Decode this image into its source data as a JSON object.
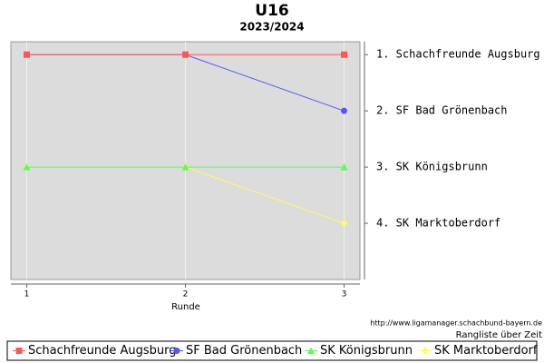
{
  "chart_data": {
    "type": "line",
    "title": "U16",
    "subtitle": "2023/2024",
    "x_label": "Runde",
    "source": "http://www.ligamanager.schachbund-bayern.de",
    "caption": "Rangliste über Zeit",
    "x": [
      1,
      2,
      3
    ],
    "xlim": [
      0.9,
      3.1
    ],
    "xticks": [
      1,
      2,
      3
    ],
    "ylim": [
      5,
      0.77
    ],
    "yticks": [
      {
        "value": 1,
        "label": "1. Schachfreunde Augsburg"
      },
      {
        "value": 2,
        "label": "2. SF Bad Grönenbach"
      },
      {
        "value": 3,
        "label": "3. SK Königsbrunn"
      },
      {
        "value": 4,
        "label": "4. SK Marktoberdorf"
      }
    ],
    "series": [
      {
        "name": "Schachfreunde Augsburg",
        "color": "#ff5555",
        "marker": "square",
        "values": [
          1,
          1,
          1
        ]
      },
      {
        "name": "SF Bad Grönenbach",
        "color": "#5555ff",
        "marker": "circle",
        "values": [
          1,
          1,
          2
        ]
      },
      {
        "name": "SK Königsbrunn",
        "color": "#55ff55",
        "marker": "triangle",
        "values": [
          3,
          3,
          3
        ]
      },
      {
        "name": "SK Marktoberdorf",
        "color": "#ffff55",
        "marker": "diamond",
        "values": [
          3,
          3,
          4
        ]
      }
    ],
    "grid": true,
    "legend": "bottom"
  }
}
